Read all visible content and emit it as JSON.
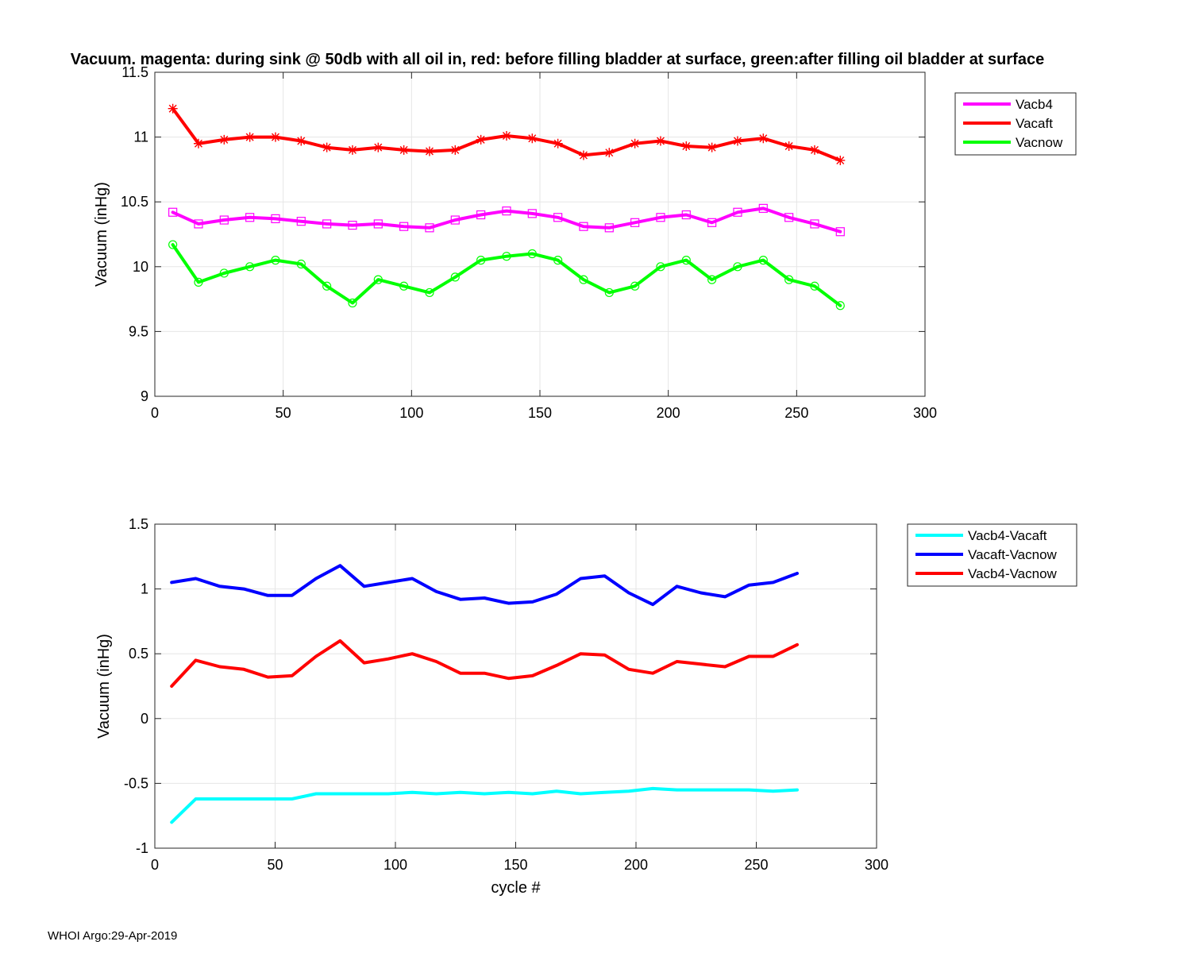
{
  "footer": "WHOI Argo:29-Apr-2019",
  "chart_data": [
    {
      "type": "line",
      "title": "Vacuum. magenta: during sink @ 50db with all oil in, red: before filling bladder at surface, green:after filling oil bladder at surface",
      "xlabel": "",
      "ylabel": "Vacuum (inHg)",
      "xlim": [
        0,
        300
      ],
      "ylim": [
        9,
        11.5
      ],
      "xticks": [
        0,
        50,
        100,
        150,
        200,
        250,
        300
      ],
      "yticks": [
        9,
        9.5,
        10,
        10.5,
        11,
        11.5
      ],
      "grid": true,
      "legend_position": "outside-top-right",
      "x": [
        7,
        17,
        27,
        37,
        47,
        57,
        67,
        77,
        87,
        97,
        107,
        117,
        127,
        137,
        147,
        157,
        167,
        177,
        187,
        197,
        207,
        217,
        227,
        237,
        247,
        257,
        267
      ],
      "series": [
        {
          "name": "Vacb4",
          "color": "#ff00ff",
          "marker": "square",
          "values": [
            10.42,
            10.33,
            10.36,
            10.38,
            10.37,
            10.35,
            10.33,
            10.32,
            10.33,
            10.31,
            10.3,
            10.36,
            10.4,
            10.43,
            10.41,
            10.38,
            10.31,
            10.3,
            10.34,
            10.38,
            10.4,
            10.34,
            10.42,
            10.45,
            10.38,
            10.33,
            10.27
          ]
        },
        {
          "name": "Vacaft",
          "color": "#ff0000",
          "marker": "asterisk",
          "values": [
            11.22,
            10.95,
            10.98,
            11.0,
            11.0,
            10.97,
            10.92,
            10.9,
            10.92,
            10.9,
            10.89,
            10.9,
            10.98,
            11.01,
            10.99,
            10.95,
            10.86,
            10.88,
            10.95,
            10.97,
            10.93,
            10.92,
            10.97,
            10.99,
            10.93,
            10.9,
            10.82
          ]
        },
        {
          "name": "Vacnow",
          "color": "#00ff00",
          "marker": "circle",
          "values": [
            10.17,
            9.88,
            9.95,
            10.0,
            10.05,
            10.02,
            9.85,
            9.72,
            9.9,
            9.85,
            9.8,
            9.92,
            10.05,
            10.08,
            10.1,
            10.05,
            9.9,
            9.8,
            9.85,
            10.0,
            10.05,
            9.9,
            10.0,
            10.05,
            9.9,
            9.85,
            9.7
          ]
        }
      ]
    },
    {
      "type": "line",
      "title": "",
      "xlabel": "cycle #",
      "ylabel": "Vacuum (inHg)",
      "xlim": [
        0,
        300
      ],
      "ylim": [
        -1,
        1.5
      ],
      "xticks": [
        0,
        50,
        100,
        150,
        200,
        250,
        300
      ],
      "yticks": [
        -1,
        -0.5,
        0,
        0.5,
        1,
        1.5
      ],
      "grid": true,
      "legend_position": "outside-top-right",
      "x": [
        7,
        17,
        27,
        37,
        47,
        57,
        67,
        77,
        87,
        97,
        107,
        117,
        127,
        137,
        147,
        157,
        167,
        177,
        187,
        197,
        207,
        217,
        227,
        237,
        247,
        257,
        267
      ],
      "series": [
        {
          "name": "Vacb4-Vacaft",
          "color": "#00ffff",
          "values": [
            -0.8,
            -0.62,
            -0.62,
            -0.62,
            -0.62,
            -0.62,
            -0.58,
            -0.58,
            -0.58,
            -0.58,
            -0.57,
            -0.58,
            -0.57,
            -0.58,
            -0.57,
            -0.58,
            -0.56,
            -0.58,
            -0.57,
            -0.56,
            -0.54,
            -0.55,
            -0.55,
            -0.55,
            -0.55,
            -0.56,
            -0.55
          ]
        },
        {
          "name": "Vacaft-Vacnow",
          "color": "#0000ff",
          "values": [
            1.05,
            1.08,
            1.02,
            1.0,
            0.95,
            0.95,
            1.08,
            1.18,
            1.02,
            1.05,
            1.08,
            0.98,
            0.92,
            0.93,
            0.89,
            0.9,
            0.96,
            1.08,
            1.1,
            0.97,
            0.88,
            1.02,
            0.97,
            0.94,
            1.03,
            1.05,
            1.12
          ]
        },
        {
          "name": "Vacb4-Vacnow",
          "color": "#ff0000",
          "values": [
            0.25,
            0.45,
            0.4,
            0.38,
            0.32,
            0.33,
            0.48,
            0.6,
            0.43,
            0.46,
            0.5,
            0.44,
            0.35,
            0.35,
            0.31,
            0.33,
            0.41,
            0.5,
            0.49,
            0.38,
            0.35,
            0.44,
            0.42,
            0.4,
            0.48,
            0.48,
            0.57
          ]
        }
      ]
    }
  ]
}
